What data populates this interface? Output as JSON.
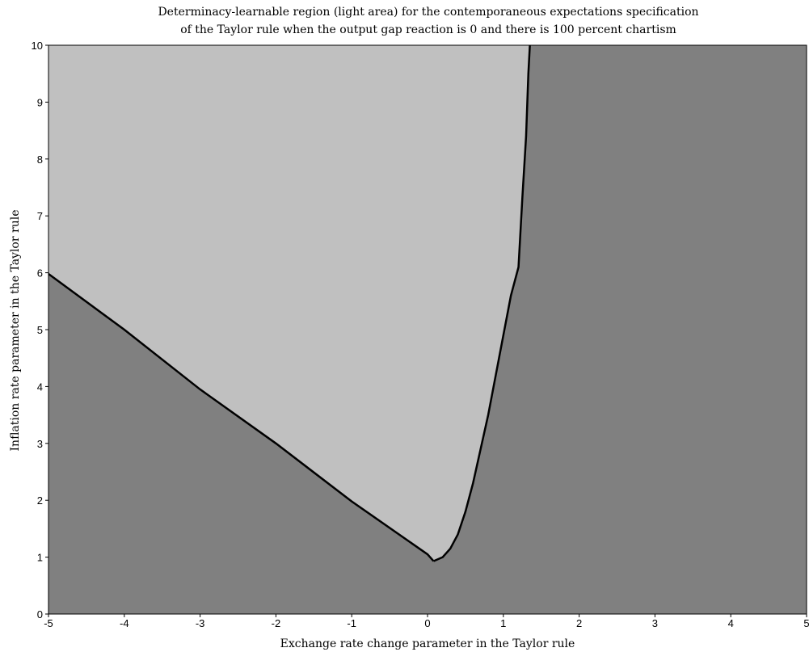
{
  "chart_data": {
    "type": "area",
    "title": "Determinacy-learnable region (light area) for the contemporaneous expectations specification",
    "subtitle": "of the Taylor rule when the output gap reaction is 0 and there is 100 percent chartism",
    "xlabel": "Exchange rate change parameter in the Taylor rule",
    "ylabel": "Inflation rate parameter in the Taylor rule",
    "xlim": [
      -5,
      5
    ],
    "ylim": [
      0,
      10
    ],
    "x_ticks": [
      "-5",
      "-4",
      "-3",
      "-2",
      "-1",
      "0",
      "1",
      "2",
      "3",
      "4",
      "5"
    ],
    "y_ticks": [
      "0",
      "1",
      "2",
      "3",
      "4",
      "5",
      "6",
      "7",
      "8",
      "9",
      "10"
    ],
    "grid": false,
    "colors": {
      "light_region": "#c0c0c0",
      "dark_region": "#808080",
      "boundary": "#000000"
    },
    "left_boundary": {
      "x": [
        -5,
        -4,
        -3,
        -2,
        -1,
        0,
        0.08
      ],
      "y": [
        5.98,
        5.0,
        3.95,
        3.0,
        1.98,
        1.05,
        0.93
      ]
    },
    "right_boundary": {
      "x": [
        0.08,
        0.2,
        0.3,
        0.4,
        0.5,
        0.6,
        0.7,
        0.8,
        0.9,
        1.0,
        1.1,
        1.2,
        1.25,
        1.3,
        1.33,
        1.35
      ],
      "y": [
        0.93,
        1.0,
        1.15,
        1.4,
        1.8,
        2.3,
        2.9,
        3.5,
        4.2,
        4.9,
        5.6,
        6.1,
        7.3,
        8.4,
        9.5,
        10
      ]
    }
  }
}
